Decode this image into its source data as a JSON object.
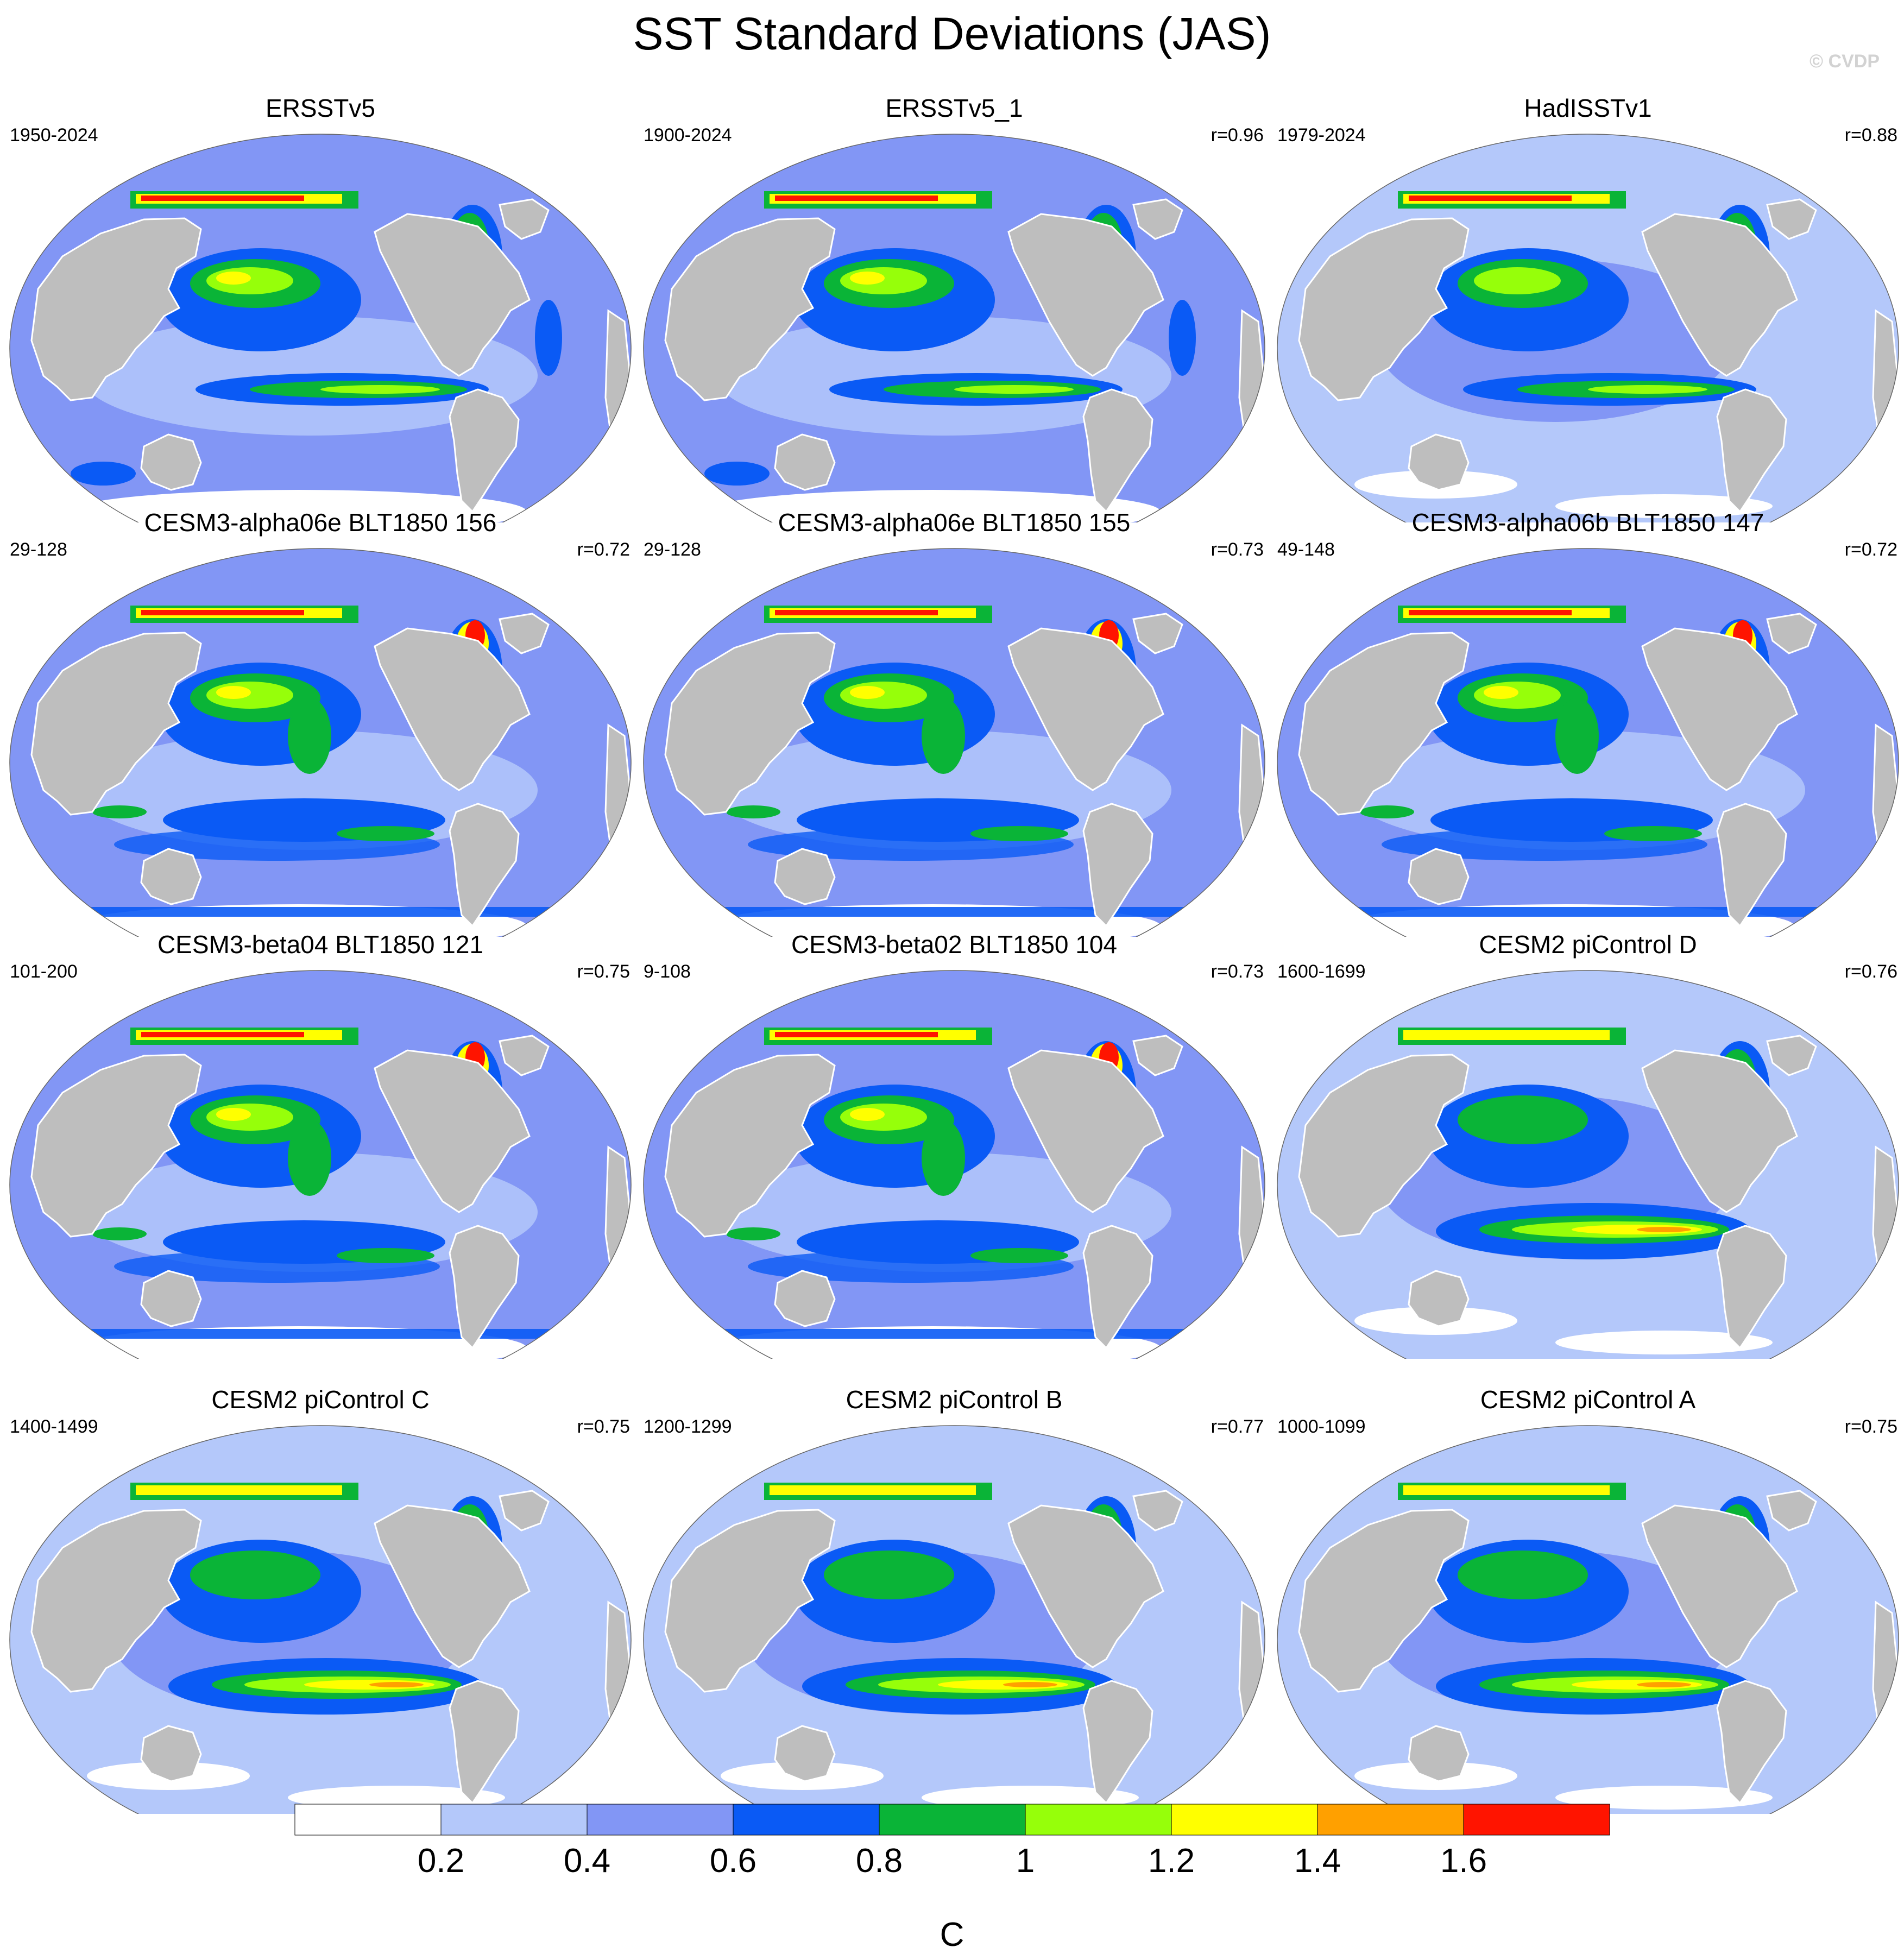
{
  "title": "SST Standard Deviations (JAS)",
  "credit": "© CVDP",
  "panels": [
    {
      "title": "ERSSTv5",
      "period": "1950-2024",
      "r": "",
      "style": "obs"
    },
    {
      "title": "ERSSTv5_1",
      "period": "1900-2024",
      "r": "r=0.96",
      "style": "obs"
    },
    {
      "title": "HadISSTv1",
      "period": "1979-2024",
      "r": "r=0.88",
      "style": "had"
    },
    {
      "title": "CESM3-alpha06e BLT1850 156",
      "period": "29-128",
      "r": "r=0.72",
      "style": "cesm3"
    },
    {
      "title": "CESM3-alpha06e BLT1850 155",
      "period": "29-128",
      "r": "r=0.73",
      "style": "cesm3"
    },
    {
      "title": "CESM3-alpha06b BLT1850 147",
      "period": "49-148",
      "r": "r=0.72",
      "style": "cesm3"
    },
    {
      "title": "CESM3-beta04 BLT1850 121",
      "period": "101-200",
      "r": "r=0.75",
      "style": "cesm3"
    },
    {
      "title": "CESM3-beta02 BLT1850 104",
      "period": "9-108",
      "r": "r=0.73",
      "style": "cesm3"
    },
    {
      "title": "CESM2 piControl D",
      "period": "1600-1699",
      "r": "r=0.76",
      "style": "cesm2"
    },
    {
      "title": "CESM2 piControl C",
      "period": "1400-1499",
      "r": "r=0.75",
      "style": "cesm2"
    },
    {
      "title": "CESM2 piControl B",
      "period": "1200-1299",
      "r": "r=0.77",
      "style": "cesm2"
    },
    {
      "title": "CESM2 piControl A",
      "period": "1000-1099",
      "r": "r=0.75",
      "style": "cesm2"
    }
  ],
  "colorbar": {
    "colors": [
      "#ffffff",
      "#b4c8fa",
      "#8296f5",
      "#0a5af5",
      "#0ab437",
      "#96ff0a",
      "#ffff00",
      "#ffa000",
      "#ff1400"
    ],
    "labels": [
      "0.2",
      "0.4",
      "0.6",
      "0.8",
      "1",
      "1.2",
      "1.4",
      "1.6"
    ],
    "unit": "C"
  },
  "colors": {
    "land": "#bebebe"
  }
}
